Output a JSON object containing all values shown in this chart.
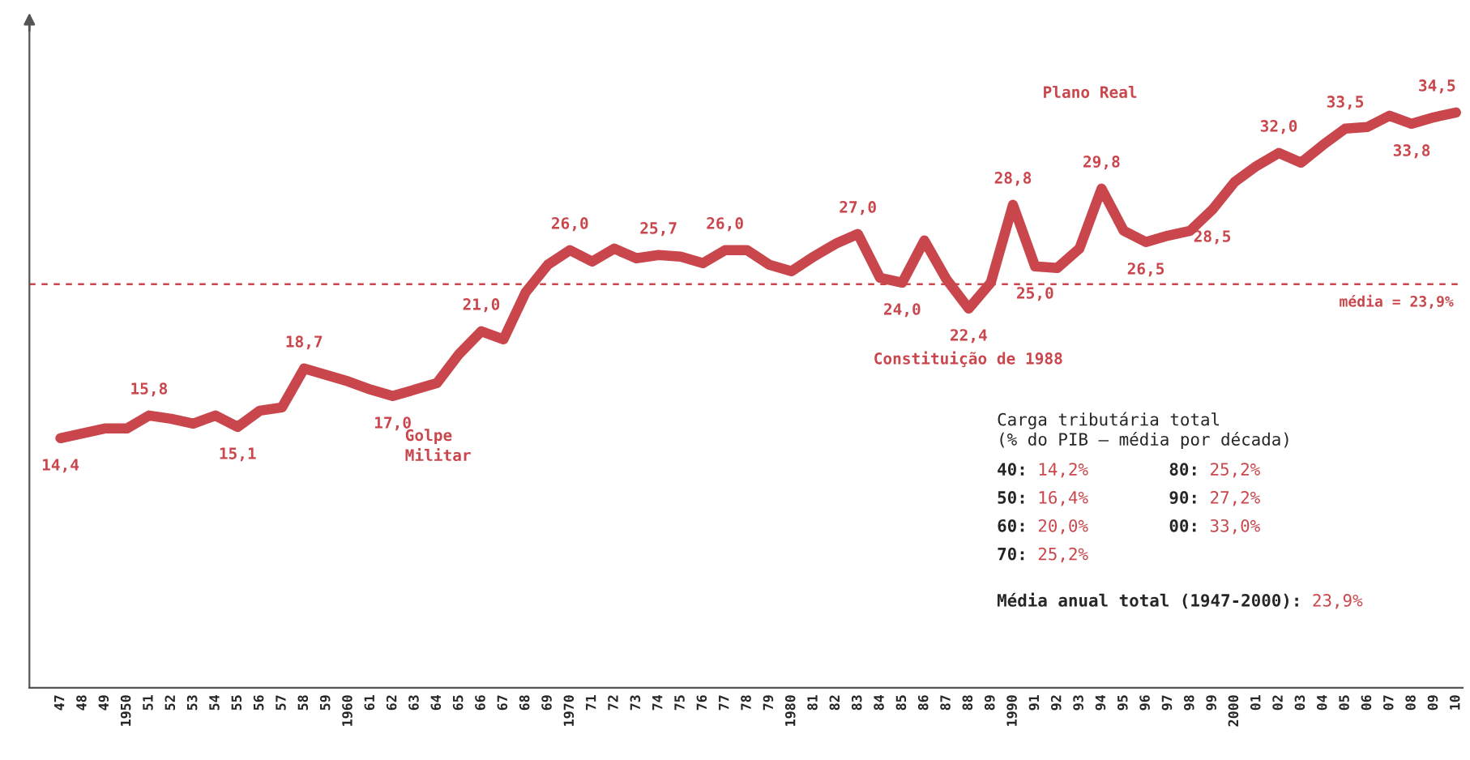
{
  "chart_data": {
    "type": "line",
    "x": [
      1947,
      1948,
      1949,
      1950,
      1951,
      1952,
      1953,
      1954,
      1955,
      1956,
      1957,
      1958,
      1959,
      1960,
      1961,
      1962,
      1963,
      1964,
      1965,
      1966,
      1967,
      1968,
      1969,
      1970,
      1971,
      1972,
      1973,
      1974,
      1975,
      1976,
      1977,
      1978,
      1979,
      1980,
      1981,
      1982,
      1983,
      1984,
      1985,
      1986,
      1987,
      1988,
      1989,
      1990,
      1991,
      1992,
      1993,
      1994,
      1995,
      1996,
      1997,
      1998,
      1999,
      2000,
      2001,
      2002,
      2003,
      2004,
      2005,
      2006,
      2007,
      2008,
      2009,
      2010
    ],
    "series": [
      {
        "color": "#c9474c",
        "values": [
          14.4,
          14.7,
          15.0,
          15.0,
          15.8,
          15.6,
          15.3,
          15.8,
          15.1,
          16.1,
          16.3,
          18.7,
          18.3,
          17.9,
          17.4,
          17.0,
          17.4,
          17.8,
          19.6,
          21.0,
          20.5,
          23.4,
          25.1,
          26.0,
          25.3,
          26.1,
          25.5,
          25.7,
          25.6,
          25.2,
          26.0,
          26.0,
          25.1,
          24.7,
          25.6,
          26.4,
          27.0,
          24.3,
          24.0,
          26.6,
          24.2,
          22.4,
          24.0,
          28.8,
          25.0,
          24.9,
          26.1,
          29.8,
          27.2,
          26.5,
          26.9,
          27.2,
          28.5,
          30.2,
          31.2,
          32.0,
          31.4,
          32.5,
          33.5,
          33.6,
          34.3,
          33.8,
          34.2,
          34.5
        ],
        "value_labels": [
          "14,4",
          null,
          null,
          null,
          "15,8",
          null,
          null,
          null,
          "15,1",
          null,
          null,
          "18,7",
          null,
          null,
          null,
          "17,0",
          null,
          null,
          null,
          "21,0",
          null,
          null,
          null,
          "26,0",
          null,
          null,
          null,
          "25,7",
          null,
          null,
          "26,0",
          null,
          null,
          null,
          null,
          null,
          "27,0",
          null,
          "24,0",
          null,
          null,
          "22,4",
          null,
          "28,8",
          "25,0",
          null,
          null,
          "29,8",
          null,
          "26,5",
          null,
          null,
          "28,5",
          null,
          null,
          "32,0",
          null,
          null,
          "33,5",
          null,
          null,
          "33,8",
          null,
          "34,5"
        ]
      }
    ],
    "xlim": [
      1945.6,
      2010.3
    ],
    "ylim": [
      -1,
      40.5
    ],
    "xticks": [
      {
        "value": 1947,
        "label": "47"
      },
      {
        "value": 1948,
        "label": "48"
      },
      {
        "value": 1949,
        "label": "49"
      },
      1950,
      {
        "value": 1951,
        "label": "51"
      },
      {
        "value": 1952,
        "label": "52"
      },
      {
        "value": 1953,
        "label": "53"
      },
      {
        "value": 1954,
        "label": "54"
      },
      {
        "value": 1955,
        "label": "55"
      },
      {
        "value": 1956,
        "label": "56"
      },
      {
        "value": 1957,
        "label": "57"
      },
      {
        "value": 1958,
        "label": "58"
      },
      {
        "value": 1959,
        "label": "59"
      },
      1960,
      {
        "value": 1961,
        "label": "61"
      },
      {
        "value": 1962,
        "label": "62"
      },
      {
        "value": 1963,
        "label": "63"
      },
      {
        "value": 1964,
        "label": "64"
      },
      {
        "value": 1965,
        "label": "65"
      },
      {
        "value": 1966,
        "label": "66"
      },
      {
        "value": 1967,
        "label": "67"
      },
      {
        "value": 1968,
        "label": "68"
      },
      {
        "value": 1969,
        "label": "69"
      },
      1970,
      {
        "value": 1971,
        "label": "71"
      },
      {
        "value": 1972,
        "label": "72"
      },
      {
        "value": 1973,
        "label": "73"
      },
      {
        "value": 1974,
        "label": "74"
      },
      {
        "value": 1975,
        "label": "75"
      },
      {
        "value": 1976,
        "label": "76"
      },
      {
        "value": 1977,
        "label": "77"
      },
      {
        "value": 1978,
        "label": "78"
      },
      {
        "value": 1979,
        "label": "79"
      },
      1980,
      {
        "value": 1981,
        "label": "81"
      },
      {
        "value": 1982,
        "label": "82"
      },
      {
        "value": 1983,
        "label": "83"
      },
      {
        "value": 1984,
        "label": "84"
      },
      {
        "value": 1985,
        "label": "85"
      },
      {
        "value": 1986,
        "label": "86"
      },
      {
        "value": 1987,
        "label": "87"
      },
      {
        "value": 1988,
        "label": "88"
      },
      {
        "value": 1989,
        "label": "89"
      },
      1990,
      {
        "value": 1991,
        "label": "91"
      },
      {
        "value": 1992,
        "label": "92"
      },
      {
        "value": 1993,
        "label": "93"
      },
      {
        "value": 1994,
        "label": "94"
      },
      {
        "value": 1995,
        "label": "95"
      },
      {
        "value": 1996,
        "label": "96"
      },
      {
        "value": 1997,
        "label": "97"
      },
      {
        "value": 1998,
        "label": "98"
      },
      {
        "value": 1999,
        "label": "99"
      },
      2000,
      {
        "value": 2001,
        "label": "01"
      },
      {
        "value": 2002,
        "label": "02"
      },
      {
        "value": 2003,
        "label": "03"
      },
      {
        "value": 2004,
        "label": "04"
      },
      {
        "value": 2005,
        "label": "05"
      },
      {
        "value": 2006,
        "label": "06"
      },
      {
        "value": 2007,
        "label": "07"
      },
      {
        "value": 2008,
        "label": "08"
      },
      {
        "value": 2009,
        "label": "09"
      },
      {
        "value": 2010,
        "label": "10"
      }
    ],
    "tick_labels": "x",
    "grid": false,
    "legend": false,
    "marker": "none",
    "line_style": "solid",
    "ref_lines": [
      {
        "axis": "y",
        "value": 23.9,
        "label": "média = 23,9%",
        "color": "#c9474c",
        "line_style": "dashed"
      }
    ],
    "annotations": [
      "Golpe\nMilitar",
      "Constituição de 1988",
      "Plano Real",
      "Carga tributária total\n(% do PIB – média por década)",
      "40: 14,2%",
      "50: 16,4%",
      "60: 20,0%",
      "70: 25,2%",
      "80: 25,2%",
      "90: 27,2%",
      "00: 33,0%",
      "Média anual total (1947-2000): 23,9%"
    ]
  }
}
